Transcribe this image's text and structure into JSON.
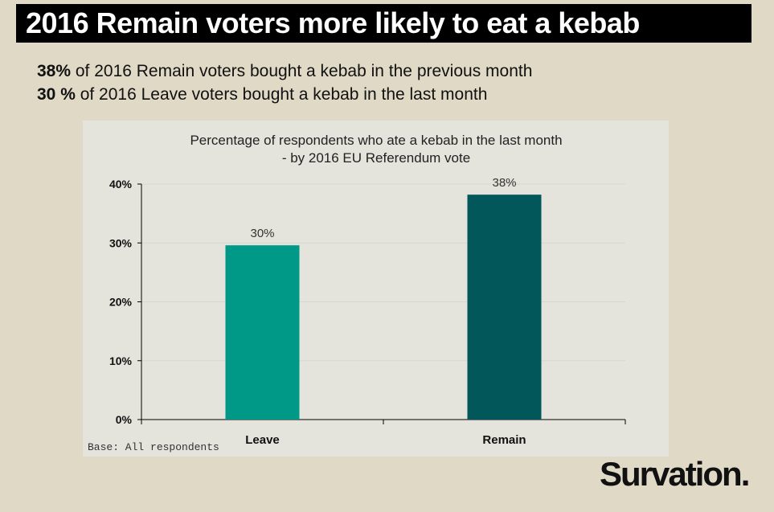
{
  "title": "2016 Remain voters more likely to eat a kebab",
  "lines": [
    {
      "bold": "38%",
      "rest": " of 2016 Remain voters bought a kebab in the previous month"
    },
    {
      "bold": "30 %",
      "rest": " of 2016 Leave voters bought a kebab in the last month"
    }
  ],
  "logo": "Survation.",
  "chart_data": {
    "type": "bar",
    "title": "Percentage of respondents who ate a kebab in the last month",
    "subtitle": "- by 2016 EU Referendum vote",
    "categories": [
      "Leave",
      "Remain"
    ],
    "values": [
      29.6,
      38.2
    ],
    "data_labels": [
      "30%",
      "38%"
    ],
    "colors": [
      "#009988",
      "#02575a"
    ],
    "yticks": [
      "0%",
      "10%",
      "20%",
      "30%",
      "40%"
    ],
    "ylim": [
      0,
      40
    ],
    "note": "Base: All respondents",
    "xlabel": "",
    "ylabel": ""
  }
}
